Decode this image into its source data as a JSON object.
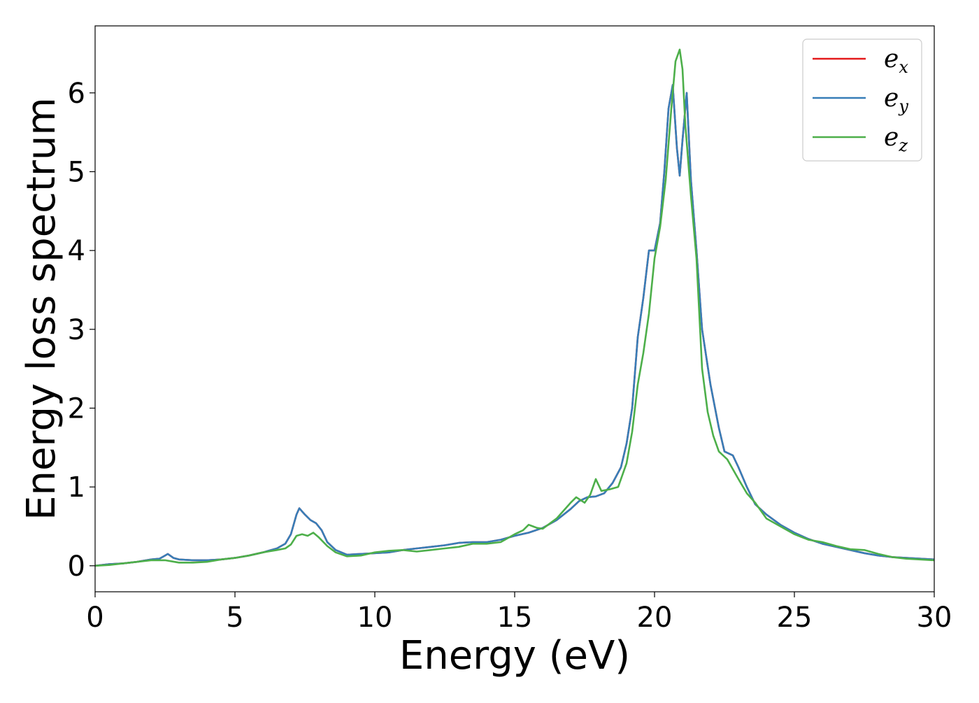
{
  "chart_data": {
    "type": "line",
    "xlabel": "Energy (eV)",
    "ylabel": "Energy loss spectrum",
    "xlim": [
      0,
      30
    ],
    "ylim": [
      -0.33,
      6.85
    ],
    "xticks": [
      0,
      5,
      10,
      15,
      20,
      25,
      30
    ],
    "yticks": [
      0,
      1,
      2,
      3,
      4,
      5,
      6
    ],
    "grid": false,
    "legend_position": "top-right",
    "series": [
      {
        "name": "e_x",
        "label_base": "e",
        "label_sub": "x",
        "color": "#e41a1c",
        "x": [
          0,
          0.5,
          1,
          1.5,
          2,
          2.3,
          2.5,
          2.6,
          2.8,
          3,
          3.5,
          4,
          4.5,
          5,
          5.5,
          6,
          6.5,
          6.8,
          7,
          7.2,
          7.3,
          7.5,
          7.7,
          7.9,
          8.1,
          8.3,
          8.6,
          9,
          9.5,
          10,
          10.5,
          11,
          11.5,
          12,
          12.5,
          13,
          13.5,
          14,
          14.5,
          15,
          15.5,
          16,
          16.5,
          17,
          17.3,
          17.6,
          17.9,
          18.2,
          18.5,
          18.8,
          19,
          19.2,
          19.4,
          19.6,
          19.8,
          20,
          20.2,
          20.35,
          20.5,
          20.65,
          20.8,
          20.9,
          21.0,
          21.15,
          21.3,
          21.5,
          21.7,
          22,
          22.3,
          22.5,
          22.8,
          23,
          23.3,
          23.6,
          24,
          24.5,
          25,
          25.5,
          26,
          26.5,
          27,
          27.5,
          28,
          28.5,
          29,
          29.5,
          30
        ],
        "y": [
          0.0,
          0.02,
          0.03,
          0.05,
          0.08,
          0.09,
          0.13,
          0.15,
          0.1,
          0.08,
          0.07,
          0.07,
          0.08,
          0.1,
          0.13,
          0.17,
          0.22,
          0.28,
          0.4,
          0.65,
          0.73,
          0.65,
          0.58,
          0.54,
          0.45,
          0.3,
          0.2,
          0.14,
          0.15,
          0.16,
          0.17,
          0.2,
          0.22,
          0.24,
          0.26,
          0.29,
          0.3,
          0.3,
          0.33,
          0.38,
          0.42,
          0.48,
          0.58,
          0.72,
          0.82,
          0.87,
          0.88,
          0.92,
          1.05,
          1.25,
          1.55,
          2.0,
          2.9,
          3.4,
          4.0,
          4.0,
          4.35,
          5.0,
          5.8,
          6.1,
          5.3,
          4.95,
          5.4,
          6.0,
          4.9,
          4.0,
          3.0,
          2.3,
          1.75,
          1.45,
          1.4,
          1.25,
          1.0,
          0.78,
          0.65,
          0.52,
          0.42,
          0.34,
          0.28,
          0.24,
          0.2,
          0.16,
          0.13,
          0.11,
          0.1,
          0.09,
          0.08
        ]
      },
      {
        "name": "e_y",
        "label_base": "e",
        "label_sub": "y",
        "color": "#377eb8",
        "x": [
          0,
          0.5,
          1,
          1.5,
          2,
          2.3,
          2.5,
          2.6,
          2.8,
          3,
          3.5,
          4,
          4.5,
          5,
          5.5,
          6,
          6.5,
          6.8,
          7,
          7.2,
          7.3,
          7.5,
          7.7,
          7.9,
          8.1,
          8.3,
          8.6,
          9,
          9.5,
          10,
          10.5,
          11,
          11.5,
          12,
          12.5,
          13,
          13.5,
          14,
          14.5,
          15,
          15.5,
          16,
          16.5,
          17,
          17.3,
          17.6,
          17.9,
          18.2,
          18.5,
          18.8,
          19,
          19.2,
          19.4,
          19.6,
          19.8,
          20,
          20.2,
          20.35,
          20.5,
          20.65,
          20.8,
          20.9,
          21.0,
          21.15,
          21.3,
          21.5,
          21.7,
          22,
          22.3,
          22.5,
          22.8,
          23,
          23.3,
          23.6,
          24,
          24.5,
          25,
          25.5,
          26,
          26.5,
          27,
          27.5,
          28,
          28.5,
          29,
          29.5,
          30
        ],
        "y": [
          0.0,
          0.02,
          0.03,
          0.05,
          0.08,
          0.09,
          0.13,
          0.15,
          0.1,
          0.08,
          0.07,
          0.07,
          0.08,
          0.1,
          0.13,
          0.17,
          0.22,
          0.28,
          0.4,
          0.65,
          0.73,
          0.65,
          0.58,
          0.54,
          0.45,
          0.3,
          0.2,
          0.14,
          0.15,
          0.16,
          0.17,
          0.2,
          0.22,
          0.24,
          0.26,
          0.29,
          0.3,
          0.3,
          0.33,
          0.38,
          0.42,
          0.48,
          0.58,
          0.72,
          0.82,
          0.87,
          0.88,
          0.92,
          1.05,
          1.25,
          1.55,
          2.0,
          2.9,
          3.4,
          4.0,
          4.0,
          4.35,
          5.0,
          5.8,
          6.1,
          5.3,
          4.95,
          5.4,
          6.0,
          4.9,
          4.0,
          3.0,
          2.3,
          1.75,
          1.45,
          1.4,
          1.25,
          1.0,
          0.78,
          0.65,
          0.52,
          0.42,
          0.34,
          0.28,
          0.24,
          0.2,
          0.16,
          0.13,
          0.11,
          0.1,
          0.09,
          0.08
        ]
      },
      {
        "name": "e_z",
        "label_base": "e",
        "label_sub": "z",
        "color": "#4daf4a",
        "x": [
          0,
          0.5,
          1,
          1.5,
          2,
          2.5,
          3,
          3.5,
          4,
          4.5,
          5,
          5.5,
          6,
          6.5,
          6.8,
          7,
          7.2,
          7.4,
          7.6,
          7.8,
          8,
          8.3,
          8.6,
          9,
          9.5,
          10,
          10.5,
          11,
          11.5,
          12,
          12.5,
          13,
          13.5,
          14,
          14.5,
          15,
          15.3,
          15.5,
          15.8,
          16,
          16.5,
          17,
          17.2,
          17.5,
          17.7,
          17.9,
          18.1,
          18.4,
          18.7,
          19,
          19.2,
          19.4,
          19.6,
          19.8,
          20,
          20.2,
          20.4,
          20.6,
          20.75,
          20.9,
          21.0,
          21.1,
          21.3,
          21.5,
          21.7,
          21.9,
          22.1,
          22.3,
          22.6,
          23,
          23.3,
          23.6,
          24,
          24.5,
          25,
          25.5,
          26,
          26.5,
          27,
          27.5,
          28,
          28.5,
          29,
          29.5,
          30
        ],
        "y": [
          0.0,
          0.01,
          0.03,
          0.05,
          0.07,
          0.07,
          0.04,
          0.04,
          0.05,
          0.08,
          0.1,
          0.13,
          0.17,
          0.2,
          0.22,
          0.27,
          0.38,
          0.4,
          0.38,
          0.42,
          0.36,
          0.25,
          0.17,
          0.12,
          0.13,
          0.17,
          0.19,
          0.2,
          0.18,
          0.2,
          0.22,
          0.24,
          0.28,
          0.28,
          0.3,
          0.4,
          0.45,
          0.52,
          0.48,
          0.47,
          0.6,
          0.8,
          0.87,
          0.8,
          0.9,
          1.1,
          0.95,
          0.97,
          1.0,
          1.3,
          1.7,
          2.3,
          2.7,
          3.2,
          3.9,
          4.3,
          4.9,
          5.8,
          6.4,
          6.55,
          6.3,
          5.6,
          4.7,
          3.9,
          2.5,
          1.95,
          1.65,
          1.45,
          1.35,
          1.1,
          0.92,
          0.8,
          0.6,
          0.5,
          0.4,
          0.33,
          0.3,
          0.25,
          0.21,
          0.2,
          0.15,
          0.11,
          0.09,
          0.08,
          0.07
        ]
      }
    ]
  }
}
